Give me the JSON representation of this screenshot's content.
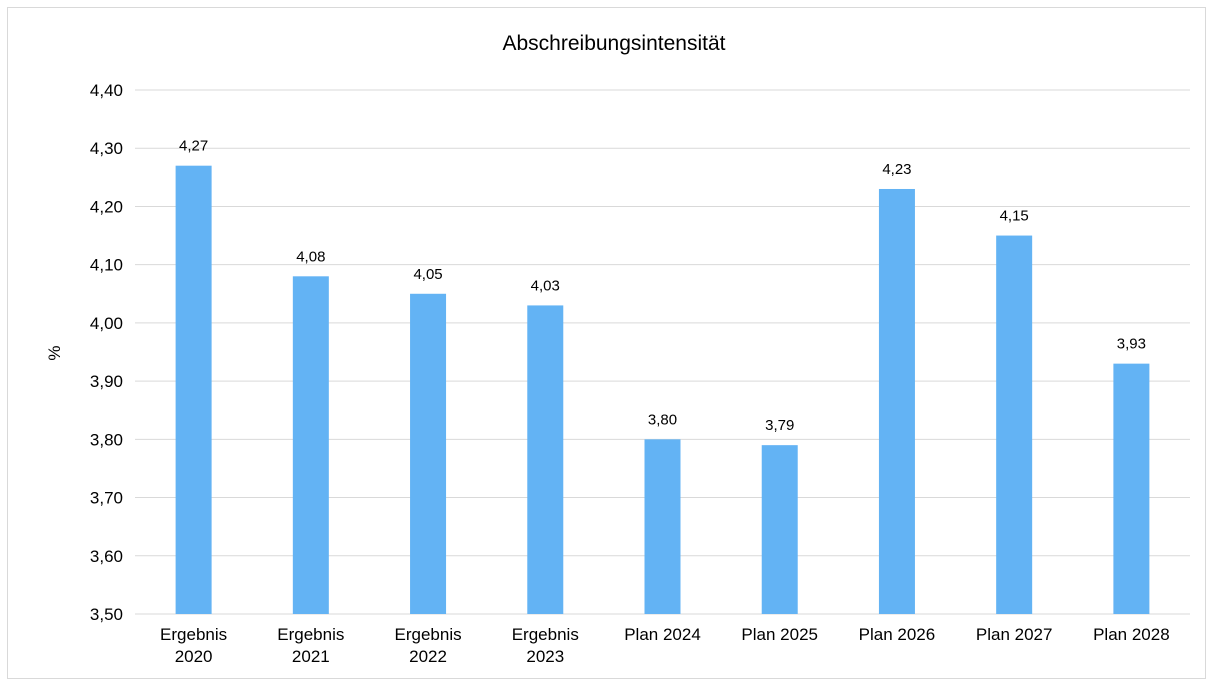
{
  "chart_data": {
    "type": "bar",
    "title": "Abschreibungsintensität",
    "xlabel": "",
    "ylabel": "%",
    "ylim": [
      3.5,
      4.4
    ],
    "ytick_step": 0.1,
    "yticks": [
      "3,50",
      "3,60",
      "3,70",
      "3,80",
      "3,90",
      "4,00",
      "4,10",
      "4,20",
      "4,30",
      "4,40"
    ],
    "categories": [
      [
        "Ergebnis",
        "2020"
      ],
      [
        "Ergebnis",
        "2021"
      ],
      [
        "Ergebnis",
        "2022"
      ],
      [
        "Ergebnis",
        "2023"
      ],
      [
        "Plan 2024"
      ],
      [
        "Plan 2025"
      ],
      [
        "Plan 2026"
      ],
      [
        "Plan 2027"
      ],
      [
        "Plan 2028"
      ]
    ],
    "values": [
      4.27,
      4.08,
      4.05,
      4.03,
      3.8,
      3.79,
      4.23,
      4.15,
      3.93
    ],
    "value_labels": [
      "4,27",
      "4,08",
      "4,05",
      "4,03",
      "3,80",
      "3,79",
      "4,23",
      "4,15",
      "3,93"
    ],
    "grid": true,
    "legend": "none",
    "colors": {
      "bar": "#63b3f4",
      "grid": "#d9d9d9",
      "text": "#000000",
      "frame": "#d9d9d9"
    }
  }
}
